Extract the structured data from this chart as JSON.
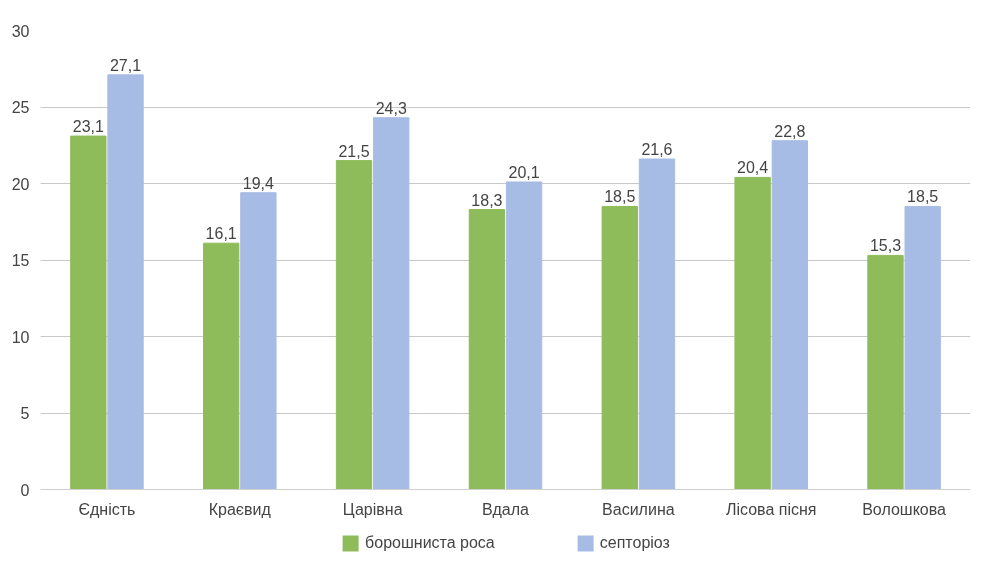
{
  "chart_data": {
    "type": "bar",
    "categories": [
      "Єдність",
      "Краєвид",
      "Царівна",
      "Вдала",
      "Василина",
      "Лісова пісня",
      "Волошкова"
    ],
    "series": [
      {
        "name": "борошниста роса",
        "color": "#8fbc5a",
        "values": [
          23.1,
          16.1,
          21.5,
          18.3,
          18.5,
          20.4,
          15.3
        ],
        "value_labels": [
          "23,1",
          "16,1",
          "21,5",
          "18,3",
          "18,5",
          "20,4",
          "15,3"
        ]
      },
      {
        "name": "септоріоз",
        "color": "#a7bce4",
        "values": [
          27.1,
          19.4,
          24.3,
          20.1,
          21.6,
          22.8,
          18.5
        ],
        "value_labels": [
          "27,1",
          "19,4",
          "24,3",
          "20,1",
          "21,6",
          "22,8",
          "18,5"
        ]
      }
    ],
    "ylim": [
      0,
      30
    ],
    "yticks": [
      0,
      5,
      10,
      15,
      20,
      25,
      30
    ],
    "grid": "y",
    "legend": "bottom",
    "data_labels": true
  }
}
